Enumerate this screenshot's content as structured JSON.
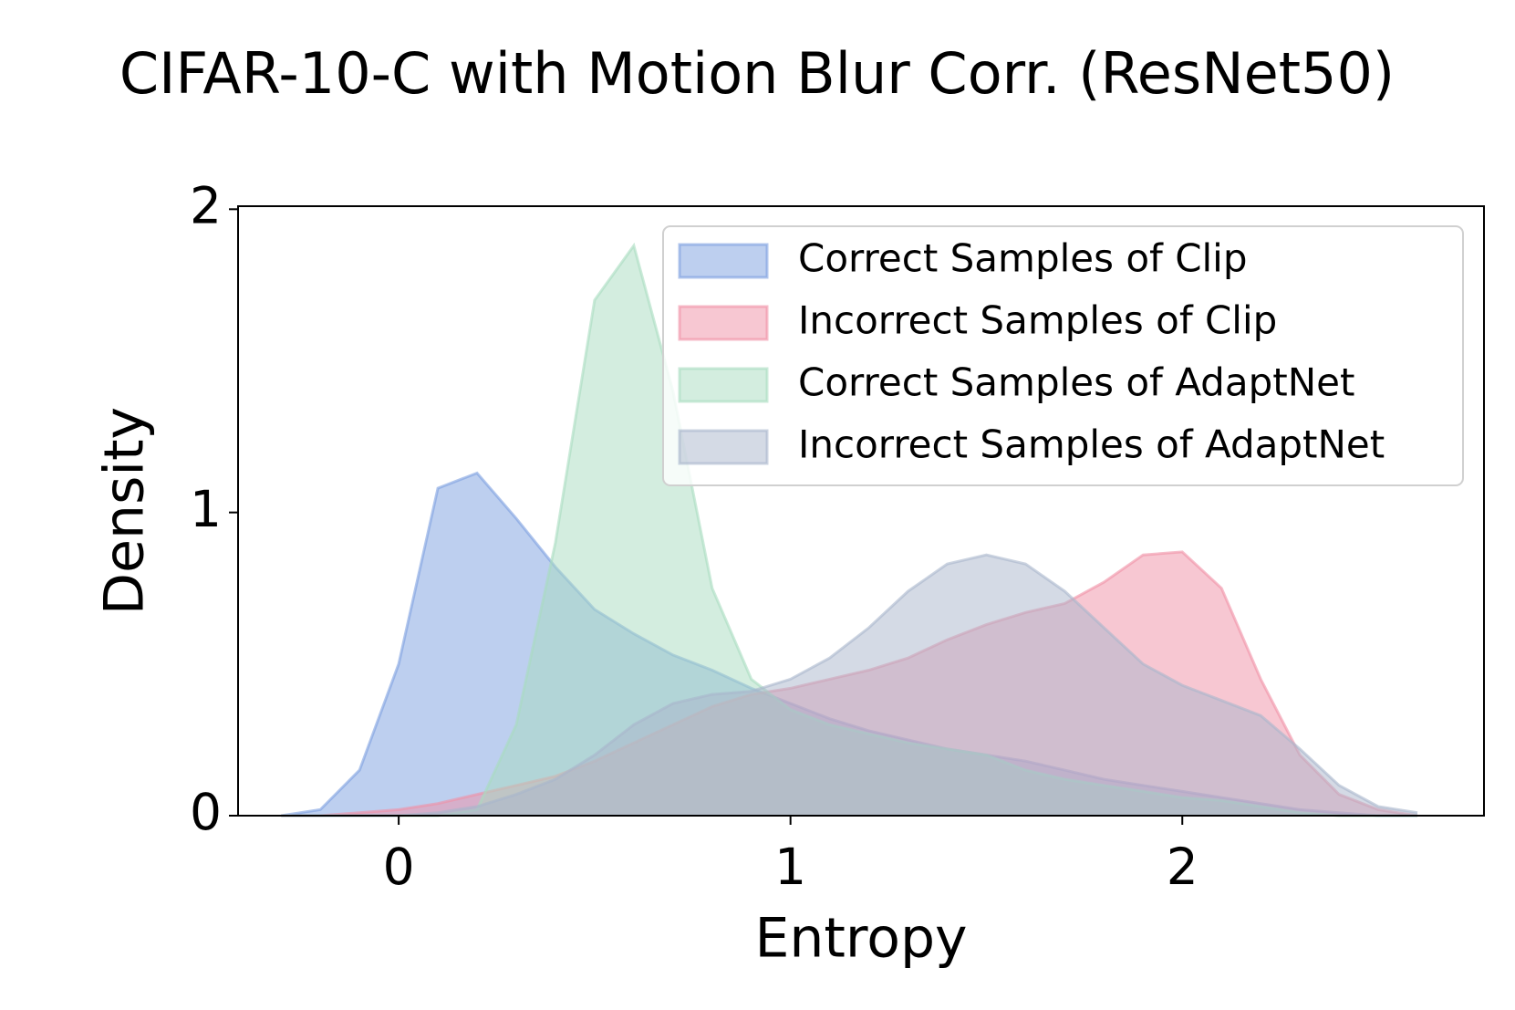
{
  "chart_data": {
    "type": "area",
    "title": "CIFAR-10-C with Motion Blur Corr. (ResNet50)",
    "xlabel": "Entropy",
    "ylabel": "Density",
    "x": [
      -0.3,
      -0.2,
      -0.1,
      0,
      0.1,
      0.2,
      0.3,
      0.4,
      0.5,
      0.6,
      0.7,
      0.8,
      0.9,
      1.0,
      1.1,
      1.2,
      1.3,
      1.4,
      1.5,
      1.6,
      1.7,
      1.8,
      1.9,
      2.0,
      2.1,
      2.2,
      2.3,
      2.4,
      2.5,
      2.6
    ],
    "series": [
      {
        "name": "Correct Samples of Clip",
        "color": "#7b9fe0",
        "values": [
          0,
          0.02,
          0.15,
          0.5,
          1.08,
          1.13,
          0.98,
          0.82,
          0.68,
          0.6,
          0.53,
          0.48,
          0.42,
          0.37,
          0.32,
          0.28,
          0.25,
          0.22,
          0.2,
          0.18,
          0.15,
          0.12,
          0.1,
          0.08,
          0.06,
          0.04,
          0.02,
          0.01,
          0,
          0
        ]
      },
      {
        "name": "Incorrect Samples of Clip",
        "color": "#f08fa5",
        "values": [
          0,
          0,
          0.01,
          0.02,
          0.04,
          0.07,
          0.1,
          0.13,
          0.18,
          0.24,
          0.3,
          0.36,
          0.4,
          0.42,
          0.45,
          0.48,
          0.52,
          0.58,
          0.63,
          0.67,
          0.7,
          0.77,
          0.86,
          0.87,
          0.75,
          0.45,
          0.2,
          0.07,
          0.02,
          0
        ]
      },
      {
        "name": "Correct Samples of AdaptNet",
        "color": "#a8dcc0",
        "values": [
          0,
          0,
          0,
          0,
          0,
          0.02,
          0.3,
          0.9,
          1.7,
          1.88,
          1.4,
          0.75,
          0.45,
          0.35,
          0.3,
          0.27,
          0.24,
          0.22,
          0.2,
          0.15,
          0.12,
          0.1,
          0.08,
          0.06,
          0.05,
          0.03,
          0.01,
          0,
          0,
          0
        ]
      },
      {
        "name": "Incorrect Samples of AdaptNet",
        "color": "#a9b5cc",
        "values": [
          0,
          0,
          0,
          0,
          0.01,
          0.03,
          0.07,
          0.12,
          0.2,
          0.3,
          0.37,
          0.4,
          0.41,
          0.45,
          0.52,
          0.62,
          0.74,
          0.83,
          0.86,
          0.83,
          0.74,
          0.62,
          0.5,
          0.43,
          0.38,
          0.33,
          0.22,
          0.1,
          0.03,
          0.01
        ]
      }
    ],
    "xlim": [
      -0.41,
      2.77
    ],
    "ylim": [
      0,
      2.01
    ],
    "xticks": [
      0,
      1,
      2
    ],
    "yticks": [
      0,
      1,
      2
    ],
    "legend": "upper right",
    "grid": false
  }
}
